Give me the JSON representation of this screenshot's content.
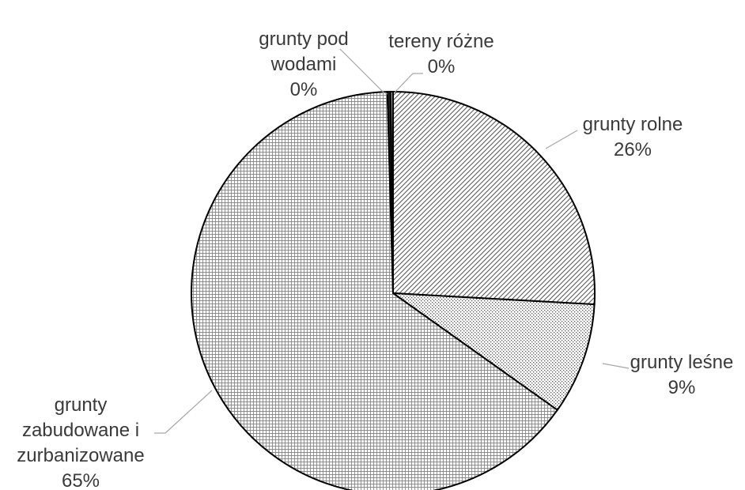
{
  "chart_data": {
    "type": "pie",
    "title": "",
    "slices": [
      {
        "label_lines": [
          "grunty rolne"
        ],
        "value": 26,
        "value_label": "26%",
        "pattern": "diagonal"
      },
      {
        "label_lines": [
          "grunty leśne"
        ],
        "value": 9,
        "value_label": "9%",
        "pattern": "dots"
      },
      {
        "label_lines": [
          "grunty",
          "zabudowane i",
          "zurbanizowane"
        ],
        "value": 65,
        "value_label": "65%",
        "pattern": "grid"
      },
      {
        "label_lines": [
          "grunty pod",
          "wodami"
        ],
        "value": 0.25,
        "value_label": "0%",
        "pattern": "solid-dark"
      },
      {
        "label_lines": [
          "tereny różne"
        ],
        "value": 0.2,
        "value_label": "0%",
        "pattern": "vertical"
      }
    ],
    "start_angle_deg": 0,
    "direction": "clockwise",
    "legend": "none",
    "data_labels": "outside with leader lines"
  }
}
